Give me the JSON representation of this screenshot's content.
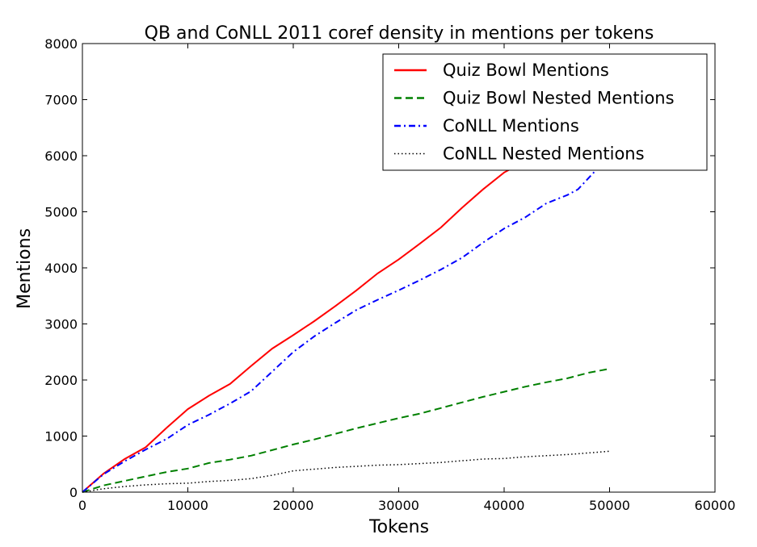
{
  "chart_data": {
    "type": "line",
    "title": "QB and CoNLL 2011 coref density in mentions per tokens",
    "xlabel": "Tokens",
    "ylabel": "Mentions",
    "xlim": [
      0,
      60000
    ],
    "ylim": [
      0,
      8000
    ],
    "xticks": [
      0,
      10000,
      20000,
      30000,
      40000,
      50000,
      60000
    ],
    "yticks": [
      0,
      1000,
      2000,
      3000,
      4000,
      5000,
      6000,
      7000,
      8000
    ],
    "grid": false,
    "legend_position": "top-right",
    "series": [
      {
        "name": "Quiz Bowl Mentions",
        "color": "#ff0000",
        "style": "solid",
        "x": [
          0,
          2000,
          4000,
          6000,
          8000,
          10000,
          12000,
          14000,
          16000,
          18000,
          20000,
          22000,
          24000,
          26000,
          28000,
          30000,
          32000,
          34000,
          36000,
          38000,
          40000,
          41000,
          42000
        ],
        "y": [
          0,
          330,
          590,
          800,
          1150,
          1480,
          1720,
          1930,
          2250,
          2560,
          2800,
          3050,
          3320,
          3600,
          3900,
          4150,
          4430,
          4720,
          5070,
          5400,
          5700,
          5800,
          5960
        ]
      },
      {
        "name": "Quiz Bowl Nested Mentions",
        "color": "#008000",
        "style": "dashed",
        "x": [
          0,
          2000,
          4000,
          6000,
          8000,
          10000,
          12000,
          14000,
          16000,
          18000,
          20000,
          22000,
          24000,
          26000,
          28000,
          30000,
          32000,
          34000,
          36000,
          38000,
          40000,
          42000,
          44000,
          46000,
          48000,
          50000
        ],
        "y": [
          0,
          120,
          200,
          280,
          360,
          420,
          520,
          580,
          650,
          750,
          850,
          940,
          1040,
          1140,
          1230,
          1320,
          1400,
          1500,
          1600,
          1700,
          1790,
          1880,
          1960,
          2030,
          2130,
          2200
        ]
      },
      {
        "name": "CoNLL Mentions",
        "color": "#0000ff",
        "style": "dashdot",
        "x": [
          0,
          2000,
          4000,
          6000,
          8000,
          10000,
          12000,
          14000,
          16000,
          18000,
          20000,
          22000,
          24000,
          26000,
          28000,
          30000,
          32000,
          34000,
          36000,
          38000,
          40000,
          42000,
          44000,
          46000,
          47000,
          48000,
          49000,
          50000
        ],
        "y": [
          0,
          320,
          550,
          760,
          950,
          1200,
          1380,
          1580,
          1800,
          2150,
          2500,
          2780,
          3020,
          3250,
          3430,
          3600,
          3780,
          3970,
          4180,
          4450,
          4700,
          4900,
          5150,
          5300,
          5400,
          5600,
          5800,
          5950
        ]
      },
      {
        "name": "CoNLL Nested Mentions",
        "color": "#000000",
        "style": "dotted",
        "x": [
          0,
          2000,
          4000,
          6000,
          8000,
          10000,
          12000,
          14000,
          16000,
          18000,
          20000,
          22000,
          24000,
          26000,
          28000,
          30000,
          32000,
          34000,
          36000,
          38000,
          40000,
          42000,
          44000,
          46000,
          48000,
          50000
        ],
        "y": [
          0,
          60,
          100,
          130,
          150,
          160,
          190,
          210,
          240,
          300,
          380,
          410,
          440,
          460,
          480,
          490,
          510,
          530,
          560,
          590,
          600,
          630,
          650,
          670,
          700,
          730
        ]
      }
    ]
  }
}
